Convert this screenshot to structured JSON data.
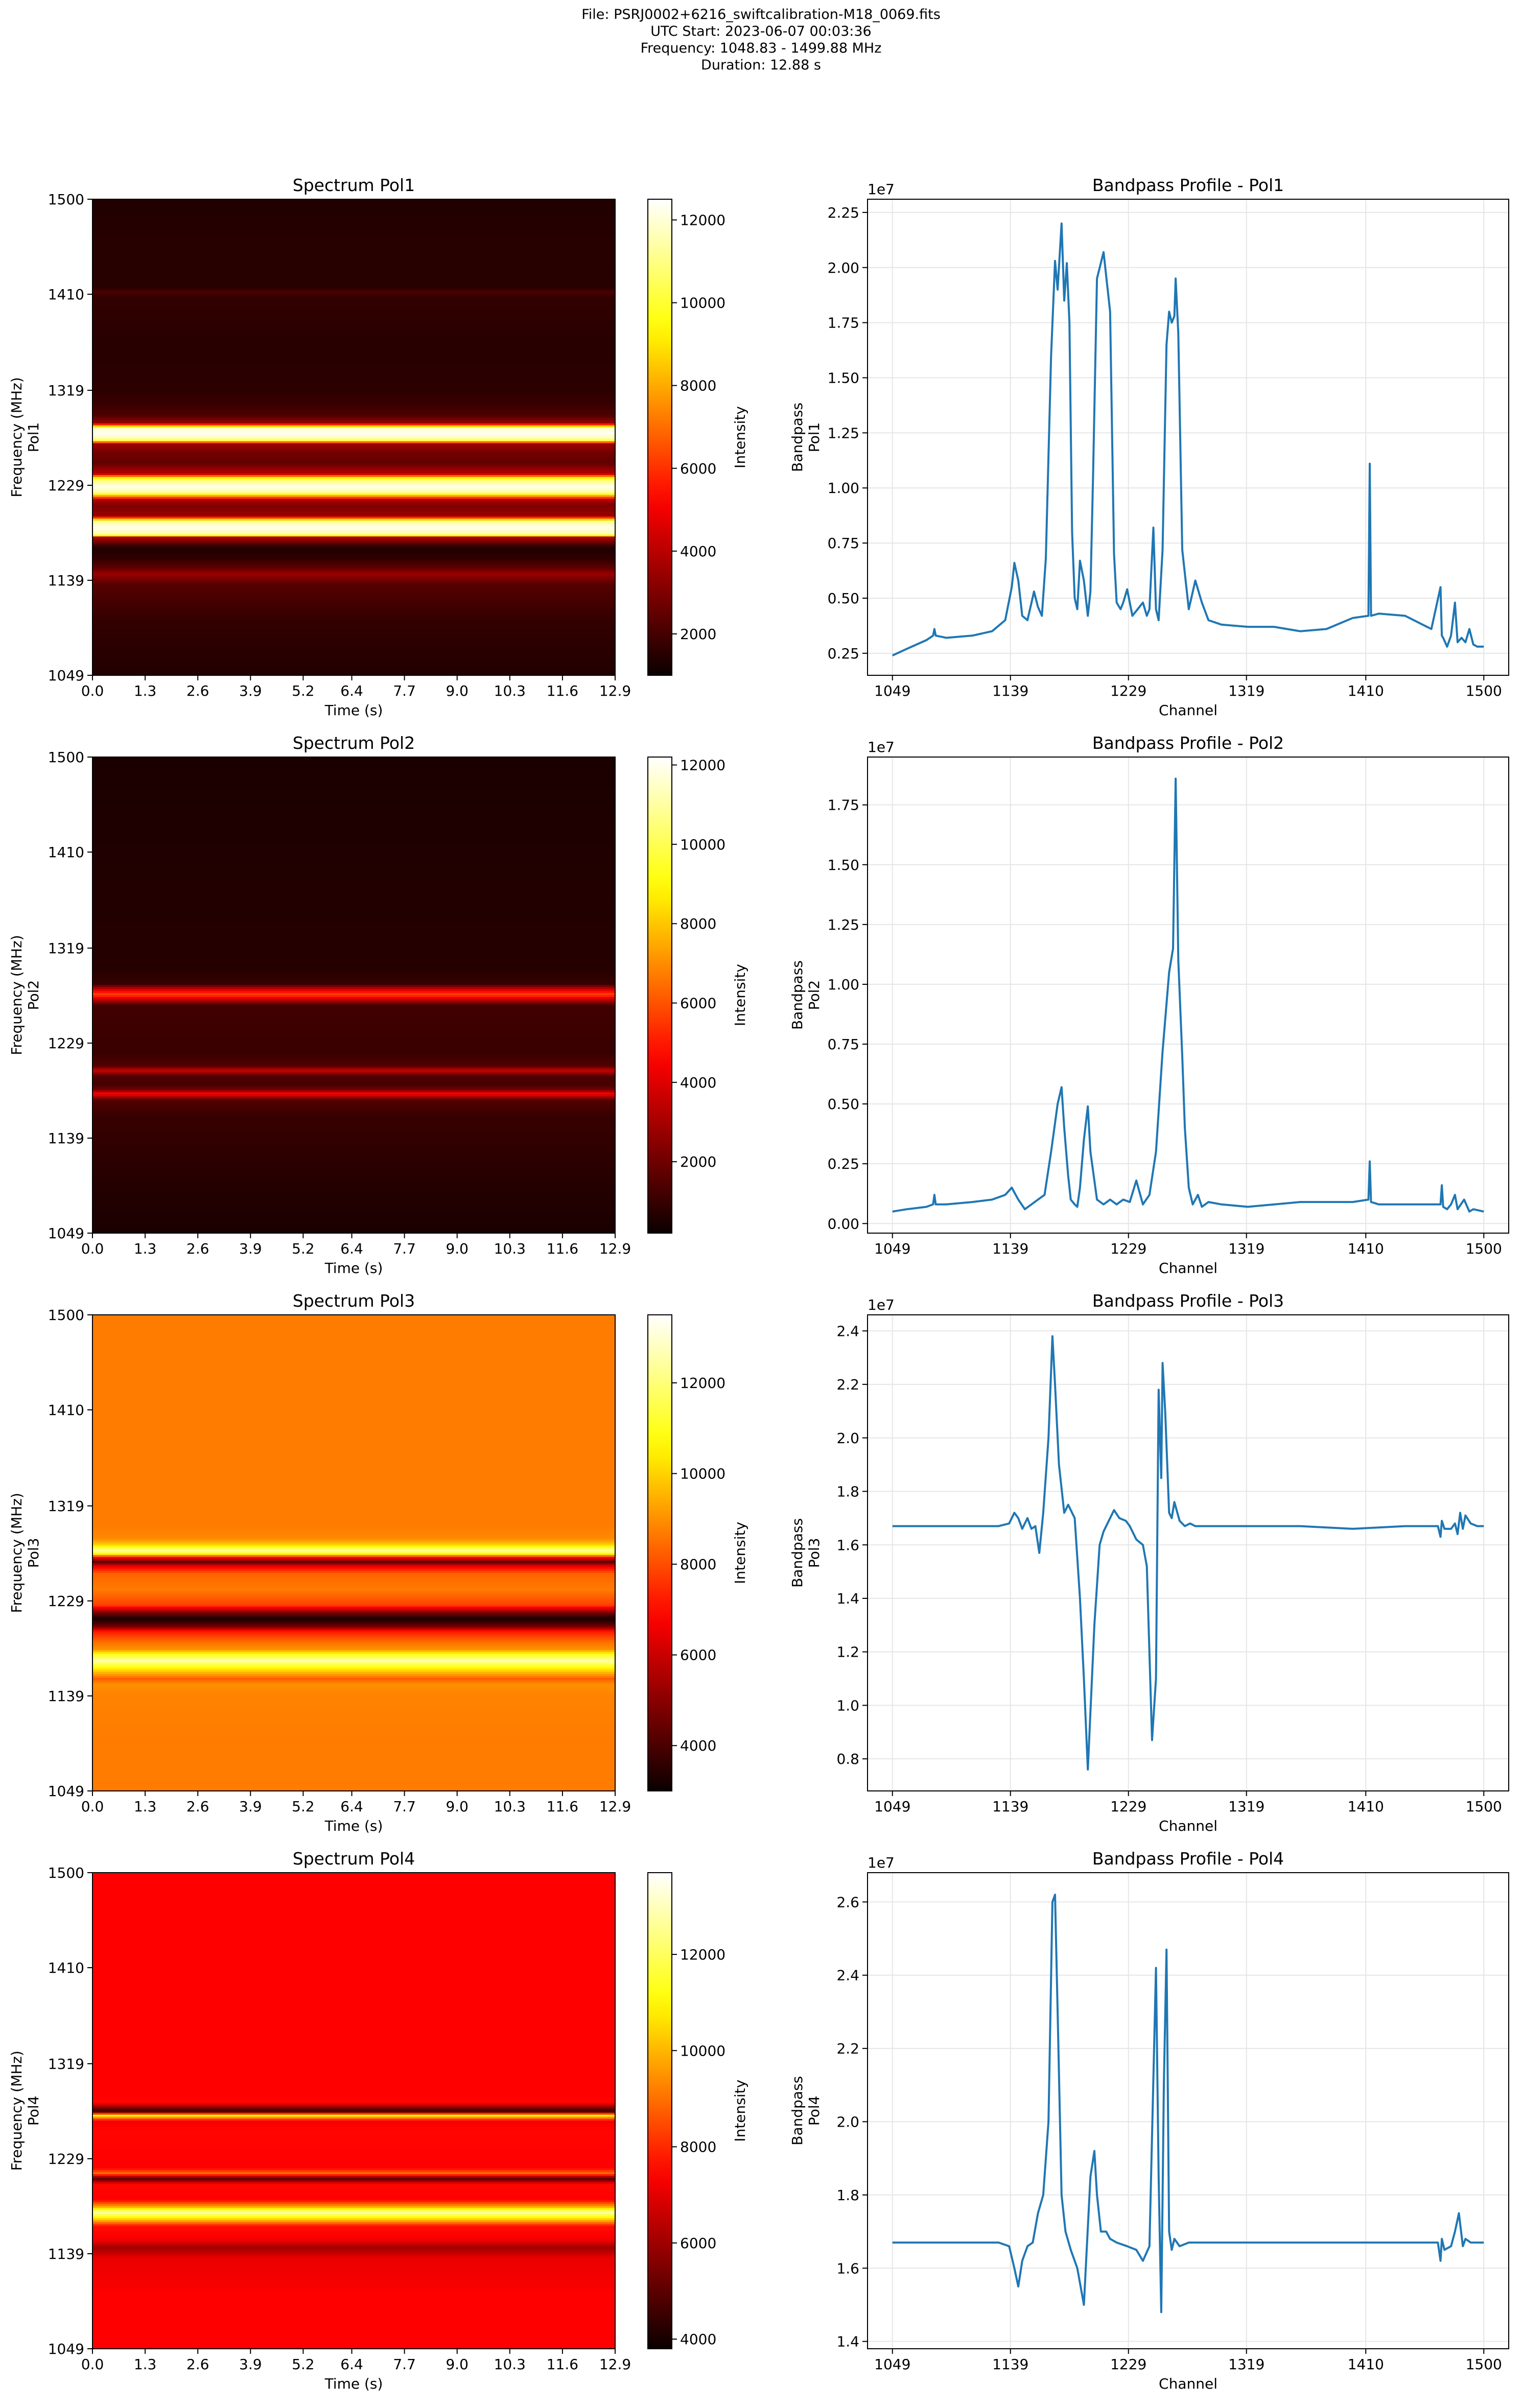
{
  "header": {
    "file_line": "File: PSRJ0002+6216_swiftcalibration-M18_0069.fits",
    "utc_line": "UTC Start: 2023-06-07 00:03:36",
    "freq_line": "Frequency: 1048.83 - 1499.88 MHz",
    "duration_line": "Duration: 12.88 s"
  },
  "colors": {
    "line": "#1f77b4",
    "grid": "#e6e6e6",
    "colormap": "hot"
  },
  "common": {
    "time_ticks": [
      "0.0",
      "1.3",
      "2.6",
      "3.9",
      "5.2",
      "6.4",
      "7.7",
      "9.0",
      "10.3",
      "11.6",
      "12.9"
    ],
    "freq_ticks": [
      "1049",
      "1139",
      "1229",
      "1319",
      "1410",
      "1500"
    ],
    "spec_xlabel": "Time (s)",
    "bp_xlabel": "Channel",
    "cbar_label": "Intensity",
    "offset_text": "1e7"
  },
  "panels": [
    {
      "pol": "Pol1",
      "spectrum_title": "Spectrum Pol1",
      "spec_ylabel": [
        "Frequency (MHz)",
        "Pol1"
      ],
      "colorbar": {
        "vmin": 1000,
        "vmax": 12500,
        "ticks": [
          2000,
          4000,
          6000,
          8000,
          10000,
          12000
        ]
      },
      "heatmap_profile": [
        [
          1049,
          1400
        ],
        [
          1100,
          1700
        ],
        [
          1135,
          2300
        ],
        [
          1145,
          3500
        ],
        [
          1150,
          2500
        ],
        [
          1160,
          1600
        ],
        [
          1170,
          1400
        ],
        [
          1180,
          4000
        ],
        [
          1182,
          11500
        ],
        [
          1190,
          12300
        ],
        [
          1195,
          11000
        ],
        [
          1200,
          3500
        ],
        [
          1210,
          3000
        ],
        [
          1215,
          3800
        ],
        [
          1222,
          11200
        ],
        [
          1228,
          12300
        ],
        [
          1235,
          10500
        ],
        [
          1240,
          4000
        ],
        [
          1250,
          2500
        ],
        [
          1260,
          2800
        ],
        [
          1268,
          3500
        ],
        [
          1272,
          11000
        ],
        [
          1278,
          12400
        ],
        [
          1283,
          11800
        ],
        [
          1288,
          3500
        ],
        [
          1295,
          2200
        ],
        [
          1305,
          1800
        ],
        [
          1319,
          1600
        ],
        [
          1360,
          1500
        ],
        [
          1408,
          1700
        ],
        [
          1412,
          2200
        ],
        [
          1416,
          1500
        ],
        [
          1460,
          1500
        ],
        [
          1500,
          1400
        ]
      ],
      "bandpass": {
        "title": "Bandpass Profile - Pol1",
        "ylabel": [
          "Bandpass",
          "Pol1"
        ],
        "y_ticks": [
          0.25,
          0.5,
          0.75,
          1.0,
          1.25,
          1.5,
          1.75,
          2.0,
          2.25
        ],
        "ylim": [
          0.15,
          2.31
        ],
        "x": [
          1049,
          1060,
          1075,
          1080,
          1081,
          1082,
          1090,
          1110,
          1125,
          1135,
          1140,
          1142,
          1145,
          1148,
          1152,
          1157,
          1160,
          1163,
          1166,
          1170,
          1173,
          1175,
          1178,
          1180,
          1182,
          1184,
          1186,
          1188,
          1190,
          1192,
          1195,
          1198,
          1200,
          1202,
          1205,
          1210,
          1215,
          1218,
          1220,
          1223,
          1225,
          1228,
          1230,
          1232,
          1236,
          1240,
          1243,
          1245,
          1248,
          1250,
          1252,
          1255,
          1258,
          1260,
          1262,
          1264,
          1265,
          1267,
          1270,
          1275,
          1280,
          1285,
          1290,
          1300,
          1320,
          1340,
          1360,
          1380,
          1400,
          1412,
          1413,
          1414,
          1420,
          1440,
          1460,
          1467,
          1468,
          1469,
          1472,
          1475,
          1478,
          1480,
          1483,
          1486,
          1489,
          1492,
          1495,
          1500
        ],
        "y": [
          0.24,
          0.27,
          0.31,
          0.33,
          0.36,
          0.33,
          0.32,
          0.33,
          0.35,
          0.4,
          0.55,
          0.66,
          0.58,
          0.42,
          0.4,
          0.53,
          0.46,
          0.42,
          0.68,
          1.6,
          2.03,
          1.9,
          2.2,
          1.85,
          2.02,
          1.75,
          0.8,
          0.5,
          0.45,
          0.67,
          0.58,
          0.42,
          0.53,
          1.05,
          1.95,
          2.07,
          1.8,
          0.7,
          0.48,
          0.45,
          0.48,
          0.54,
          0.48,
          0.42,
          0.45,
          0.48,
          0.42,
          0.45,
          0.82,
          0.45,
          0.4,
          0.72,
          1.65,
          1.8,
          1.75,
          1.78,
          1.95,
          1.7,
          0.72,
          0.45,
          0.58,
          0.48,
          0.4,
          0.38,
          0.37,
          0.37,
          0.35,
          0.36,
          0.41,
          0.42,
          1.11,
          0.42,
          0.43,
          0.42,
          0.36,
          0.55,
          0.33,
          0.32,
          0.28,
          0.33,
          0.48,
          0.3,
          0.32,
          0.3,
          0.36,
          0.29,
          0.28,
          0.28
        ]
      }
    },
    {
      "pol": "Pol2",
      "spectrum_title": "Spectrum Pol2",
      "spec_ylabel": [
        "Frequency (MHz)",
        "Pol2"
      ],
      "colorbar": {
        "vmin": 200,
        "vmax": 12200,
        "ticks": [
          2000,
          4000,
          6000,
          8000,
          10000,
          12000
        ]
      },
      "heatmap_profile": [
        [
          1049,
          500
        ],
        [
          1100,
          700
        ],
        [
          1135,
          900
        ],
        [
          1160,
          1000
        ],
        [
          1175,
          1500
        ],
        [
          1181,
          4600
        ],
        [
          1185,
          2000
        ],
        [
          1190,
          1200
        ],
        [
          1198,
          1500
        ],
        [
          1203,
          3800
        ],
        [
          1207,
          1500
        ],
        [
          1220,
          1000
        ],
        [
          1265,
          1200
        ],
        [
          1271,
          3800
        ],
        [
          1275,
          5800
        ],
        [
          1279,
          4200
        ],
        [
          1285,
          1000
        ],
        [
          1300,
          700
        ],
        [
          1400,
          600
        ],
        [
          1500,
          500
        ]
      ],
      "bandpass": {
        "title": "Bandpass Profile - Pol2",
        "ylabel": [
          "Bandpass",
          "Pol2"
        ],
        "y_ticks": [
          0.0,
          0.25,
          0.5,
          0.75,
          1.0,
          1.25,
          1.5,
          1.75
        ],
        "ylim": [
          -0.04,
          1.95
        ],
        "x": [
          1049,
          1060,
          1075,
          1080,
          1081,
          1082,
          1090,
          1110,
          1125,
          1135,
          1140,
          1145,
          1150,
          1155,
          1160,
          1165,
          1170,
          1175,
          1178,
          1180,
          1183,
          1185,
          1188,
          1190,
          1192,
          1195,
          1198,
          1200,
          1205,
          1210,
          1215,
          1220,
          1225,
          1230,
          1235,
          1240,
          1245,
          1250,
          1255,
          1260,
          1263,
          1265,
          1267,
          1270,
          1272,
          1275,
          1278,
          1282,
          1285,
          1290,
          1300,
          1320,
          1360,
          1400,
          1412,
          1413,
          1414,
          1420,
          1460,
          1467,
          1468,
          1469,
          1472,
          1475,
          1478,
          1480,
          1485,
          1489,
          1492,
          1500
        ],
        "y": [
          0.05,
          0.06,
          0.07,
          0.08,
          0.12,
          0.08,
          0.08,
          0.09,
          0.1,
          0.12,
          0.15,
          0.1,
          0.06,
          0.08,
          0.1,
          0.12,
          0.3,
          0.5,
          0.57,
          0.4,
          0.2,
          0.1,
          0.08,
          0.07,
          0.15,
          0.35,
          0.49,
          0.3,
          0.1,
          0.08,
          0.1,
          0.08,
          0.1,
          0.09,
          0.18,
          0.08,
          0.12,
          0.3,
          0.72,
          1.05,
          1.15,
          1.86,
          1.1,
          0.7,
          0.4,
          0.15,
          0.08,
          0.12,
          0.07,
          0.09,
          0.08,
          0.07,
          0.09,
          0.09,
          0.1,
          0.26,
          0.09,
          0.08,
          0.08,
          0.08,
          0.16,
          0.07,
          0.06,
          0.08,
          0.12,
          0.06,
          0.1,
          0.05,
          0.06,
          0.05
        ]
      }
    },
    {
      "pol": "Pol3",
      "spectrum_title": "Spectrum Pol3",
      "spec_ylabel": [
        "Frequency (MHz)",
        "Pol3"
      ],
      "colorbar": {
        "vmin": 3000,
        "vmax": 13500,
        "ticks": [
          4000,
          6000,
          8000,
          10000,
          12000
        ]
      },
      "heatmap_profile": [
        [
          1049,
          8700
        ],
        [
          1100,
          8700
        ],
        [
          1140,
          8800
        ],
        [
          1150,
          9000
        ],
        [
          1155,
          8200
        ],
        [
          1165,
          10500
        ],
        [
          1172,
          12500
        ],
        [
          1178,
          11000
        ],
        [
          1183,
          9000
        ],
        [
          1190,
          8500
        ],
        [
          1200,
          7200
        ],
        [
          1205,
          4500
        ],
        [
          1212,
          3200
        ],
        [
          1218,
          4800
        ],
        [
          1225,
          7800
        ],
        [
          1240,
          8700
        ],
        [
          1255,
          8300
        ],
        [
          1262,
          6500
        ],
        [
          1266,
          4200
        ],
        [
          1270,
          6800
        ],
        [
          1274,
          11000
        ],
        [
          1277,
          12500
        ],
        [
          1282,
          10000
        ],
        [
          1288,
          8900
        ],
        [
          1300,
          8700
        ],
        [
          1500,
          8700
        ]
      ],
      "bandpass": {
        "title": "Bandpass Profile - Pol3",
        "ylabel": [
          "Bandpass",
          "Pol3"
        ],
        "y_ticks": [
          0.8,
          1.0,
          1.2,
          1.4,
          1.6,
          1.8,
          2.0,
          2.2,
          2.4
        ],
        "ylim": [
          0.68,
          2.46
        ],
        "x": [
          1049,
          1080,
          1110,
          1130,
          1138,
          1142,
          1145,
          1148,
          1152,
          1155,
          1158,
          1161,
          1164,
          1168,
          1171,
          1173,
          1176,
          1180,
          1183,
          1188,
          1192,
          1195,
          1198,
          1203,
          1207,
          1210,
          1213,
          1218,
          1222,
          1227,
          1230,
          1235,
          1240,
          1243,
          1247,
          1250,
          1252,
          1254,
          1255,
          1257,
          1260,
          1262,
          1264,
          1268,
          1272,
          1276,
          1280,
          1290,
          1320,
          1360,
          1400,
          1440,
          1465,
          1467,
          1468,
          1470,
          1475,
          1478,
          1480,
          1482,
          1484,
          1486,
          1490,
          1495,
          1500
        ],
        "y": [
          1.67,
          1.67,
          1.67,
          1.67,
          1.68,
          1.72,
          1.7,
          1.66,
          1.7,
          1.66,
          1.67,
          1.57,
          1.72,
          2.0,
          2.38,
          2.2,
          1.9,
          1.72,
          1.75,
          1.7,
          1.4,
          1.1,
          0.76,
          1.3,
          1.6,
          1.65,
          1.68,
          1.73,
          1.7,
          1.69,
          1.67,
          1.62,
          1.6,
          1.52,
          0.87,
          1.1,
          2.18,
          1.85,
          2.28,
          2.1,
          1.72,
          1.7,
          1.76,
          1.69,
          1.67,
          1.68,
          1.67,
          1.67,
          1.67,
          1.67,
          1.66,
          1.67,
          1.67,
          1.63,
          1.69,
          1.66,
          1.66,
          1.68,
          1.64,
          1.72,
          1.66,
          1.71,
          1.68,
          1.67,
          1.67
        ]
      }
    },
    {
      "pol": "Pol4",
      "spectrum_title": "Spectrum Pol4",
      "spec_ylabel": [
        "Frequency (MHz)",
        "Pol4"
      ],
      "colorbar": {
        "vmin": 3800,
        "vmax": 13700,
        "ticks": [
          4000,
          6000,
          8000,
          10000,
          12000
        ]
      },
      "heatmap_profile": [
        [
          1049,
          7400
        ],
        [
          1100,
          7400
        ],
        [
          1135,
          7100
        ],
        [
          1145,
          6000
        ],
        [
          1152,
          7300
        ],
        [
          1165,
          7600
        ],
        [
          1172,
          10500
        ],
        [
          1178,
          12800
        ],
        [
          1183,
          10000
        ],
        [
          1190,
          7400
        ],
        [
          1205,
          7500
        ],
        [
          1210,
          4800
        ],
        [
          1215,
          9000
        ],
        [
          1220,
          7400
        ],
        [
          1255,
          7500
        ],
        [
          1265,
          7300
        ],
        [
          1270,
          11000
        ],
        [
          1274,
          4200
        ],
        [
          1278,
          5800
        ],
        [
          1282,
          7500
        ],
        [
          1290,
          7400
        ],
        [
          1500,
          7400
        ]
      ],
      "bandpass": {
        "title": "Bandpass Profile - Pol4",
        "ylabel": [
          "Bandpass",
          "Pol4"
        ],
        "y_ticks": [
          1.4,
          1.6,
          1.8,
          2.0,
          2.2,
          2.4,
          2.6
        ],
        "ylim": [
          1.38,
          2.68
        ],
        "x": [
          1049,
          1080,
          1110,
          1130,
          1138,
          1142,
          1145,
          1148,
          1152,
          1156,
          1160,
          1164,
          1168,
          1171,
          1173,
          1175,
          1178,
          1181,
          1185,
          1190,
          1195,
          1200,
          1203,
          1205,
          1208,
          1212,
          1215,
          1220,
          1228,
          1235,
          1240,
          1245,
          1250,
          1252,
          1254,
          1256,
          1258,
          1260,
          1262,
          1264,
          1268,
          1275,
          1280,
          1300,
          1320,
          1360,
          1400,
          1440,
          1465,
          1467,
          1468,
          1470,
          1475,
          1478,
          1481,
          1484,
          1486,
          1490,
          1495,
          1500
        ],
        "y": [
          1.67,
          1.67,
          1.67,
          1.67,
          1.66,
          1.6,
          1.55,
          1.62,
          1.66,
          1.67,
          1.75,
          1.8,
          2.0,
          2.6,
          2.62,
          2.3,
          1.8,
          1.7,
          1.65,
          1.6,
          1.5,
          1.85,
          1.92,
          1.8,
          1.7,
          1.7,
          1.68,
          1.67,
          1.66,
          1.65,
          1.62,
          1.66,
          2.42,
          1.85,
          1.48,
          2.1,
          2.47,
          1.7,
          1.65,
          1.68,
          1.66,
          1.67,
          1.67,
          1.67,
          1.67,
          1.67,
          1.67,
          1.67,
          1.67,
          1.62,
          1.68,
          1.65,
          1.66,
          1.7,
          1.75,
          1.66,
          1.68,
          1.67,
          1.67,
          1.67
        ]
      }
    }
  ]
}
